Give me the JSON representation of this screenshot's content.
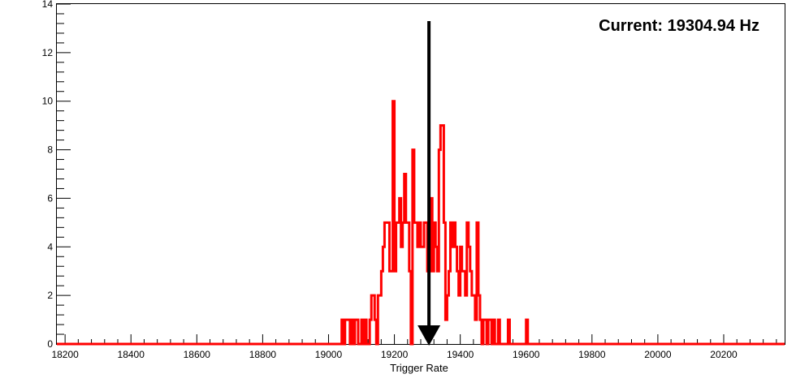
{
  "chart_data": {
    "type": "histogram",
    "title": "",
    "annotation": "Current: 19304.94 Hz",
    "xlabel": "Trigger Rate",
    "ylabel": "",
    "xlim": [
      18175,
      20385
    ],
    "ylim": [
      0,
      14
    ],
    "x_ticks": [
      18200,
      18400,
      18600,
      18800,
      19000,
      19200,
      19400,
      19600,
      19800,
      20000,
      20200
    ],
    "y_ticks": [
      0,
      2,
      4,
      6,
      8,
      10,
      12,
      14
    ],
    "bin_width": 5,
    "series": [
      {
        "color": "#ff0000",
        "bins": [
          [
            19040,
            1
          ],
          [
            19045,
            0
          ],
          [
            19050,
            1
          ],
          [
            19055,
            1
          ],
          [
            19060,
            1
          ],
          [
            19065,
            0
          ],
          [
            19070,
            1
          ],
          [
            19075,
            0
          ],
          [
            19080,
            1
          ],
          [
            19085,
            1
          ],
          [
            19090,
            0
          ],
          [
            19095,
            0
          ],
          [
            19100,
            1
          ],
          [
            19105,
            0
          ],
          [
            19110,
            1
          ],
          [
            19115,
            0
          ],
          [
            19120,
            0
          ],
          [
            19125,
            1
          ],
          [
            19130,
            2
          ],
          [
            19135,
            2
          ],
          [
            19140,
            1
          ],
          [
            19145,
            0
          ],
          [
            19150,
            2
          ],
          [
            19155,
            2
          ],
          [
            19160,
            3
          ],
          [
            19165,
            4
          ],
          [
            19170,
            5
          ],
          [
            19175,
            5
          ],
          [
            19180,
            5
          ],
          [
            19185,
            3
          ],
          [
            19190,
            3
          ],
          [
            19195,
            10
          ],
          [
            19200,
            3
          ],
          [
            19205,
            5
          ],
          [
            19210,
            5
          ],
          [
            19215,
            6
          ],
          [
            19220,
            4
          ],
          [
            19225,
            5
          ],
          [
            19230,
            7
          ],
          [
            19235,
            5
          ],
          [
            19240,
            5
          ],
          [
            19245,
            3
          ],
          [
            19250,
            0
          ],
          [
            19255,
            8
          ],
          [
            19260,
            5
          ],
          [
            19265,
            5
          ],
          [
            19270,
            4
          ],
          [
            19275,
            5
          ],
          [
            19280,
            4
          ],
          [
            19285,
            4
          ],
          [
            19290,
            5
          ],
          [
            19295,
            5
          ],
          [
            19300,
            3
          ],
          [
            19305,
            3
          ],
          [
            19310,
            6
          ],
          [
            19315,
            3
          ],
          [
            19320,
            5
          ],
          [
            19325,
            4
          ],
          [
            19330,
            3
          ],
          [
            19335,
            8
          ],
          [
            19340,
            9
          ],
          [
            19345,
            9
          ],
          [
            19350,
            5
          ],
          [
            19355,
            1
          ],
          [
            19360,
            2
          ],
          [
            19365,
            3
          ],
          [
            19370,
            5
          ],
          [
            19375,
            4
          ],
          [
            19380,
            5
          ],
          [
            19385,
            4
          ],
          [
            19390,
            3
          ],
          [
            19395,
            2
          ],
          [
            19400,
            4
          ],
          [
            19405,
            3
          ],
          [
            19410,
            3
          ],
          [
            19415,
            2
          ],
          [
            19420,
            5
          ],
          [
            19425,
            4
          ],
          [
            19430,
            3
          ],
          [
            19435,
            2
          ],
          [
            19440,
            2
          ],
          [
            19445,
            1
          ],
          [
            19450,
            5
          ],
          [
            19455,
            2
          ],
          [
            19460,
            1
          ],
          [
            19465,
            0
          ],
          [
            19470,
            1
          ],
          [
            19475,
            1
          ],
          [
            19480,
            0
          ],
          [
            19485,
            1
          ],
          [
            19490,
            1
          ],
          [
            19495,
            0
          ],
          [
            19500,
            1
          ],
          [
            19505,
            0
          ],
          [
            19510,
            0
          ],
          [
            19515,
            1
          ],
          [
            19520,
            0
          ],
          [
            19525,
            0
          ],
          [
            19530,
            0
          ],
          [
            19535,
            0
          ],
          [
            19540,
            0
          ],
          [
            19545,
            1
          ],
          [
            19550,
            0
          ],
          [
            19600,
            1
          ],
          [
            19605,
            0
          ]
        ]
      }
    ],
    "marker": {
      "type": "arrow-down",
      "x": 19304.94,
      "y_top": 13.3,
      "y_bottom": 0,
      "color": "#000000"
    }
  }
}
